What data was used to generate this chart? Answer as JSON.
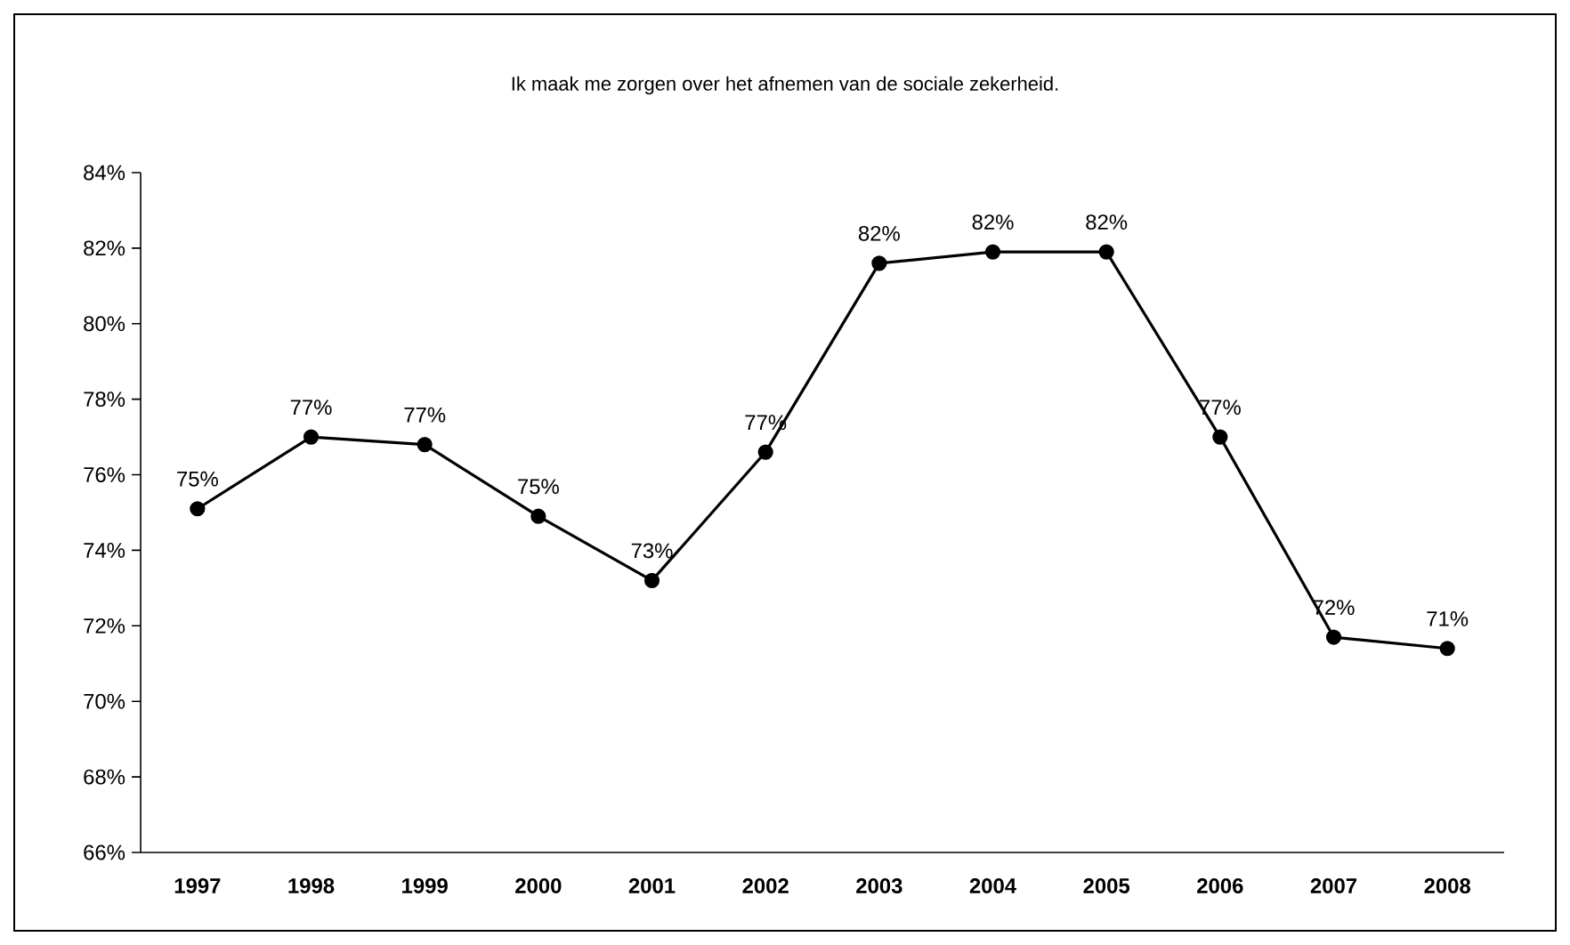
{
  "chart_data": {
    "type": "line",
    "title": "Ik maak me zorgen over het afnemen van de sociale zekerheid.",
    "categories": [
      "1997",
      "1998",
      "1999",
      "2000",
      "2001",
      "2002",
      "2003",
      "2004",
      "2005",
      "2006",
      "2007",
      "2008"
    ],
    "series": [
      {
        "color": "#000000",
        "values": [
          75.1,
          77.0,
          76.8,
          74.9,
          73.2,
          76.6,
          81.6,
          81.9,
          81.9,
          77.0,
          71.7,
          71.4
        ],
        "value_labels": [
          "75%",
          "77%",
          "77%",
          "75%",
          "73%",
          "77%",
          "82%",
          "82%",
          "82%",
          "77%",
          "72%",
          "71%"
        ]
      }
    ],
    "ylim": [
      66,
      84
    ],
    "yticks": [
      {
        "value": 66,
        "label": "66%"
      },
      {
        "value": 68,
        "label": "68%"
      },
      {
        "value": 70,
        "label": "70%"
      },
      {
        "value": 72,
        "label": "72%"
      },
      {
        "value": 74,
        "label": "74%"
      },
      {
        "value": 76,
        "label": "76%"
      },
      {
        "value": 78,
        "label": "78%"
      },
      {
        "value": 80,
        "label": "80%"
      },
      {
        "value": 82,
        "label": "82%"
      },
      {
        "value": 84,
        "label": "84%"
      }
    ],
    "marker": "circle",
    "line_style": "solid"
  }
}
